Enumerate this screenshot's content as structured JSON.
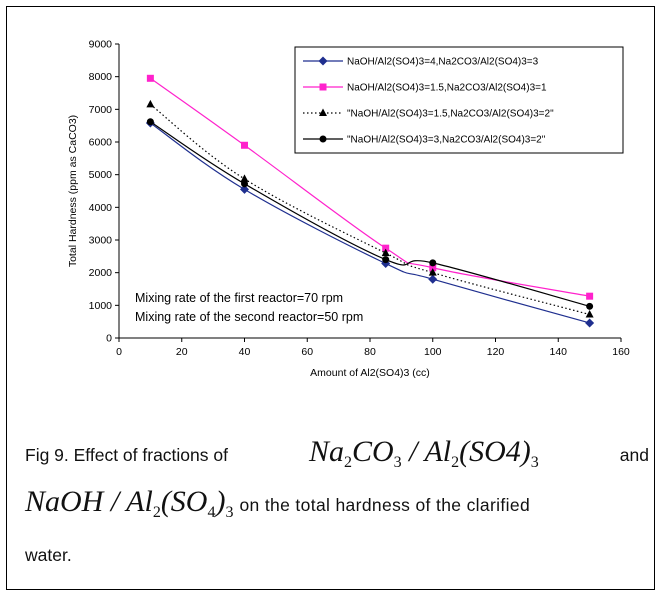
{
  "chart_data": {
    "type": "line",
    "xlabel": "Amount of Al2(SO4)3 (cc)",
    "ylabel": "Total Hardness (ppm as CaCO3)",
    "xlim": [
      0,
      160
    ],
    "ylim": [
      0,
      9000
    ],
    "xticks": [
      "0",
      "20",
      "40",
      "60",
      "80",
      "100",
      "120",
      "140",
      "160"
    ],
    "yticks": [
      "0",
      "1000",
      "2000",
      "3000",
      "4000",
      "5000",
      "6000",
      "7000",
      "8000",
      "9000"
    ],
    "grid": false,
    "legend_position": "top-right",
    "x": [
      10,
      40,
      85,
      100,
      150
    ],
    "series": [
      {
        "name": "NaOH/Al2(SO4)3=4,Na2CO3/Al2(SO4)3=3",
        "values": [
          6580,
          4550,
          2280,
          1800,
          460
        ],
        "color": "#1f2f8f",
        "marker": "diamond",
        "line": "solid"
      },
      {
        "name": "NaOH/Al2(SO4)3=1.5,Na2CO3/Al2(SO4)3=1",
        "values": [
          7950,
          5900,
          2750,
          2150,
          1280
        ],
        "color": "#ff22cc",
        "marker": "square",
        "line": "solid"
      },
      {
        "name": "\"NaOH/Al2(SO4)3=1.5,Na2CO3/Al2(SO4)3=2\"",
        "values": [
          7150,
          4870,
          2600,
          2000,
          720
        ],
        "color": "#000000",
        "marker": "triangle",
        "line": "dotted"
      },
      {
        "name": "\"NaOH/Al2(SO4)3=3,Na2CO3/Al2(SO4)3=2\"",
        "values": [
          6620,
          4720,
          2400,
          2300,
          970
        ],
        "color": "#000000",
        "marker": "circle",
        "line": "solid"
      }
    ],
    "annotations": [
      "Mixing rate of the first reactor=70 rpm",
      "Mixing rate of the second reactor=50 rpm"
    ]
  },
  "caption": {
    "prefix": "Fig 9. Effect of fractions of",
    "formula1": {
      "a": "Na",
      "a_sub": "2",
      "b": "CO",
      "b_sub": "3",
      "sep": " / ",
      "c": "Al",
      "c_sub": "2",
      "d": "(SO4)",
      "d_sub": "3"
    },
    "and_word": "and",
    "formula2": {
      "a": "NaOH",
      "sep": " / ",
      "c": "Al",
      "c_sub": "2",
      "d": "(SO",
      "d_sub": "4",
      "e": ")",
      "e_sub": "3"
    },
    "line2_text": "on the total hardness of the clarified",
    "line3_text": "water."
  }
}
